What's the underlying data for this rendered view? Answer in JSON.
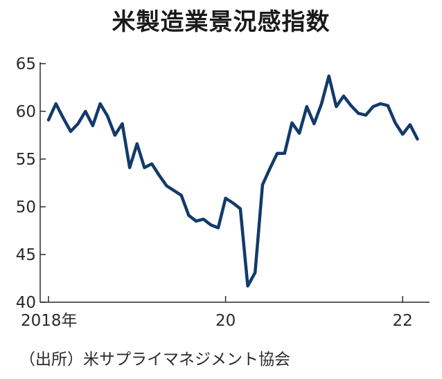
{
  "title": "米製造業景況感指数",
  "source": "（出所）米サプライマネジメント協会",
  "colors": {
    "line": "#123a6b",
    "axis": "#2a2a2a"
  },
  "chart_data": {
    "type": "line",
    "title": "米製造業景況感指数",
    "xlabel": "",
    "ylabel": "",
    "ylim": [
      40,
      65
    ],
    "yticks": [
      40,
      45,
      50,
      55,
      60,
      65
    ],
    "x_start": "2018-01",
    "x_ticks": [
      {
        "index": 0,
        "label": "2018年"
      },
      {
        "index": 24,
        "label": "20"
      },
      {
        "index": 48,
        "label": "22"
      }
    ],
    "grid": false,
    "series": [
      {
        "values": [
          59.1,
          60.8,
          59.3,
          57.9,
          58.7,
          60.0,
          58.5,
          60.8,
          59.5,
          57.5,
          58.7,
          54.1,
          56.6,
          54.1,
          54.5,
          53.3,
          52.2,
          51.7,
          51.2,
          49.1,
          48.5,
          48.7,
          48.1,
          47.8,
          50.9,
          50.4,
          49.8,
          41.7,
          43.1,
          52.3,
          54.0,
          55.6,
          55.6,
          58.8,
          57.7,
          60.5,
          58.7,
          60.8,
          63.7,
          60.5,
          61.6,
          60.6,
          59.8,
          59.6,
          60.5,
          60.8,
          60.6,
          58.8,
          57.6,
          58.6,
          57.1
        ]
      }
    ]
  }
}
